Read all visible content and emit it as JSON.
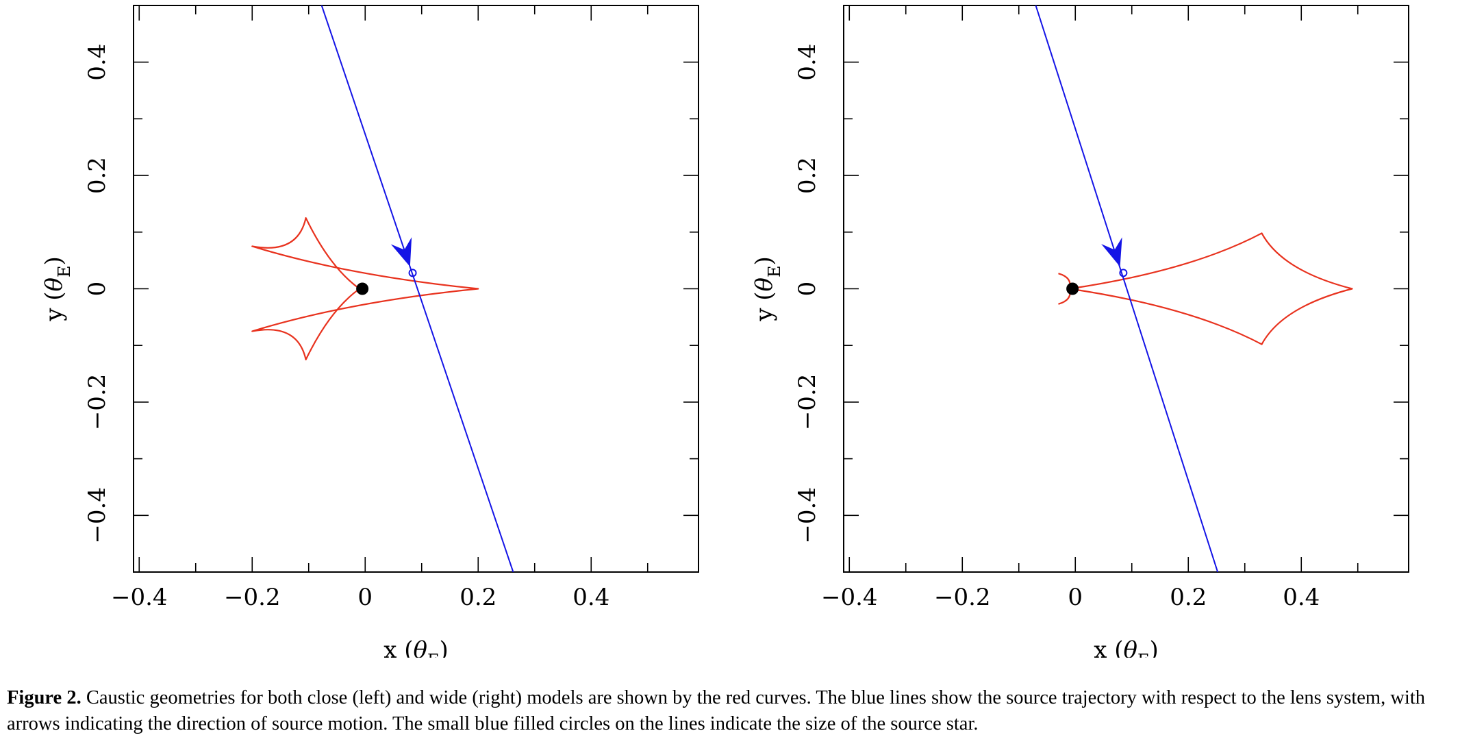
{
  "caption": {
    "label": "Figure 2.",
    "text": "Caustic geometries for both close (left) and wide (right) models are shown by the red curves. The blue lines show the source trajectory with respect to the lens system, with arrows indicating the direction of source motion. The small blue filled circles on the lines indicate the size of the source star."
  },
  "colors": {
    "caustic": "#e8321e",
    "trajectory": "#1414e6",
    "lens": "#000000",
    "axes": "#000000"
  },
  "chart_data": [
    {
      "type": "line",
      "panel": "left",
      "model": "close",
      "xlabel": "x",
      "ylabel": "y",
      "axis_unit_symbol": "θ",
      "axis_unit_subscript": "E",
      "xlim": [
        -0.41,
        0.59
      ],
      "ylim": [
        -0.5,
        0.5
      ],
      "xticks": [
        -0.4,
        -0.2,
        0,
        0.2,
        0.4
      ],
      "xtick_labels": [
        "−0.4",
        "−0.2",
        "0",
        "0.2",
        "0.4"
      ],
      "yticks": [
        -0.4,
        -0.2,
        0,
        0.2,
        0.4
      ],
      "ytick_labels": [
        "−0.4",
        "−0.2",
        "0",
        "0.2",
        "0.4"
      ],
      "caustic_vertices": [
        [
          -0.2,
          0.075
        ],
        [
          -0.105,
          0.125
        ],
        [
          -0.01,
          0.0
        ],
        [
          -0.105,
          -0.125
        ],
        [
          -0.2,
          -0.075
        ],
        [
          0.2,
          0.0
        ]
      ],
      "caustic_curve_depth": 0.25,
      "trajectory": {
        "x1": -0.077,
        "y1": 0.5,
        "x2": 0.262,
        "y2": -0.5,
        "direction": "downward"
      },
      "arrow": [
        0.074,
        0.055
      ],
      "source_circle": [
        0.084,
        0.028
      ],
      "lens_point": [
        -0.005,
        0.0
      ]
    },
    {
      "type": "line",
      "panel": "right",
      "model": "wide",
      "xlabel": "x",
      "ylabel": "y",
      "axis_unit_symbol": "θ",
      "axis_unit_subscript": "E",
      "xlim": [
        -0.41,
        0.59
      ],
      "ylim": [
        -0.5,
        0.5
      ],
      "xticks": [
        -0.4,
        -0.2,
        0,
        0.2,
        0.4
      ],
      "xtick_labels": [
        "−0.4",
        "−0.2",
        "0",
        "0.2",
        "0.4"
      ],
      "yticks": [
        -0.4,
        -0.2,
        0,
        0.2,
        0.4
      ],
      "ytick_labels": [
        "−0.4",
        "−0.2",
        "0",
        "0.2",
        "0.4"
      ],
      "caustic_vertices": [
        [
          -0.01,
          0.0
        ],
        [
          0.33,
          0.098
        ],
        [
          0.49,
          0.0
        ],
        [
          0.33,
          -0.098
        ]
      ],
      "caustic_curve_depth": 0.22,
      "inner_lobe": {
        "top": [
          -0.03,
          0.027
        ],
        "bottom": [
          -0.03,
          -0.027
        ]
      },
      "trajectory": {
        "x1": -0.07,
        "y1": 0.5,
        "x2": 0.252,
        "y2": -0.5,
        "direction": "downward"
      },
      "arrow": [
        0.074,
        0.055
      ],
      "source_circle": [
        0.085,
        0.028
      ],
      "lens_point": [
        -0.005,
        0.0
      ]
    }
  ]
}
